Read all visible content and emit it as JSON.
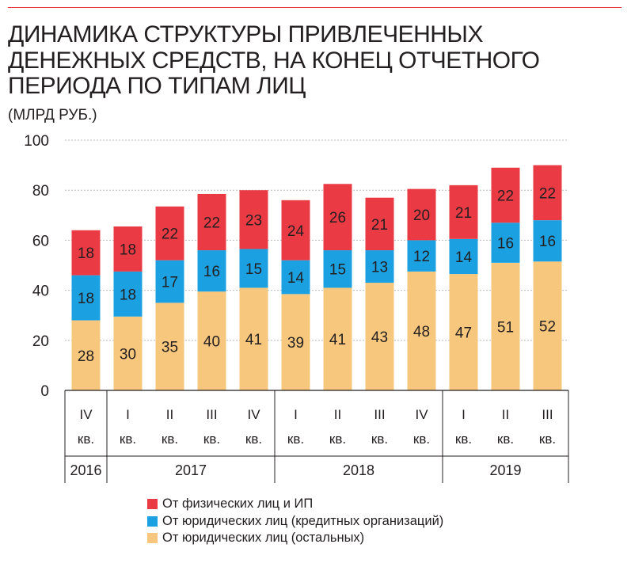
{
  "title_lines": [
    "ДИНАМИКА СТРУКТУРЫ ПРИВЛЕЧЕННЫХ",
    "ДЕНЕЖНЫХ СРЕДСТВ, НА КОНЕЦ ОТЧЕТНОГО",
    "ПЕРИОДА ПО ТИПАМ ЛИЦ"
  ],
  "subtitle": "(МЛРД РУБ.)",
  "colors": {
    "rule": "#e8333a",
    "other_legal": "#f7c77d",
    "credit_orgs": "#1ba1e2",
    "individuals": "#ea3a43",
    "grid": "#b8b9bb",
    "axis": "#231f20"
  },
  "legend": [
    {
      "label": "От физических лиц и ИП",
      "color": "#ea3a43"
    },
    {
      "label": "От юридических лиц (кредитных организаций)",
      "color": "#1ba1e2"
    },
    {
      "label": "От юридических лиц (остальных)",
      "color": "#f7c77d"
    }
  ],
  "chart_data": {
    "type": "bar",
    "stacked": true,
    "ylim": [
      0,
      100
    ],
    "yticks": [
      0,
      20,
      40,
      60,
      80,
      100
    ],
    "grid": true,
    "categories": [
      {
        "quarter": "IV",
        "suffix": "кв."
      },
      {
        "quarter": "I",
        "suffix": "кв."
      },
      {
        "quarter": "II",
        "suffix": "кв."
      },
      {
        "quarter": "III",
        "suffix": "кв."
      },
      {
        "quarter": "IV",
        "suffix": "кв."
      },
      {
        "quarter": "I",
        "suffix": "кв."
      },
      {
        "quarter": "II",
        "suffix": "кв."
      },
      {
        "quarter": "III",
        "suffix": "кв."
      },
      {
        "quarter": "IV",
        "suffix": "кв."
      },
      {
        "quarter": "I",
        "suffix": "кв."
      },
      {
        "quarter": "II",
        "suffix": "кв."
      },
      {
        "quarter": "III",
        "suffix": "кв."
      }
    ],
    "years": [
      {
        "label": "2016",
        "count": 1
      },
      {
        "label": "2017",
        "count": 4
      },
      {
        "label": "2018",
        "count": 4
      },
      {
        "label": "2019",
        "count": 3
      }
    ],
    "series": [
      {
        "name": "От юридических лиц (остальных)",
        "color": "#f7c77d",
        "values": [
          28,
          30,
          35,
          40,
          41,
          39,
          41,
          43,
          48,
          47,
          51,
          52
        ]
      },
      {
        "name": "От юридических лиц (кредитных организаций)",
        "color": "#1ba1e2",
        "values": [
          18,
          18,
          17,
          16,
          15,
          14,
          15,
          13,
          12,
          14,
          16,
          16
        ]
      },
      {
        "name": "От физических лиц и ИП",
        "color": "#ea3a43",
        "values": [
          18,
          18,
          22,
          22,
          23,
          24,
          26,
          21,
          20,
          21,
          22,
          22
        ]
      }
    ],
    "segments": [
      [
        28,
        18,
        18
      ],
      [
        29.5,
        18,
        18
      ],
      [
        35,
        17,
        21.5
      ],
      [
        39.5,
        16.5,
        22.5
      ],
      [
        41,
        15.5,
        23.5
      ],
      [
        38.5,
        13.5,
        24
      ],
      [
        41,
        15,
        26.5
      ],
      [
        43,
        13,
        21
      ],
      [
        47.5,
        12.5,
        20.5
      ],
      [
        46.5,
        14,
        21.5
      ],
      [
        51,
        16,
        22
      ],
      [
        51.5,
        16.5,
        22
      ]
    ]
  }
}
